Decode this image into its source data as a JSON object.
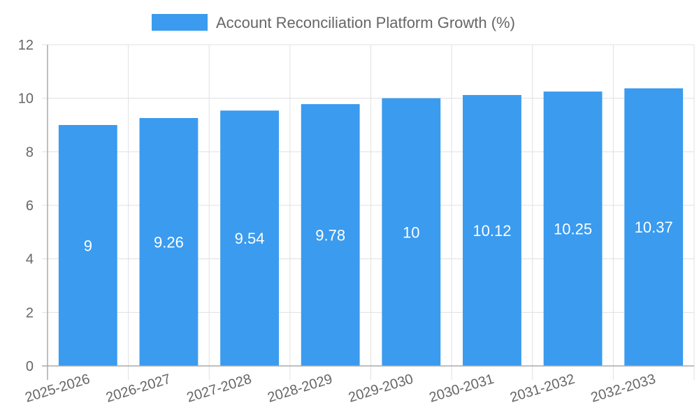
{
  "chart_data": {
    "type": "bar",
    "title": "",
    "xlabel": "",
    "ylabel": "",
    "categories": [
      "2025-2026",
      "2026-2027",
      "2027-2028",
      "2028-2029",
      "2029-2030",
      "2030-2031",
      "2031-2032",
      "2032-2033"
    ],
    "series": [
      {
        "name": "Account Reconciliation Platform Growth (%)",
        "values": [
          9,
          9.26,
          9.54,
          9.78,
          10,
          10.12,
          10.25,
          10.37
        ],
        "color": "#3a9bef"
      }
    ],
    "ylim": [
      0,
      12
    ],
    "yticks": [
      0,
      2,
      4,
      6,
      8,
      10,
      12
    ],
    "grid": true,
    "legend_position": "top",
    "data_labels": true
  },
  "legend": {
    "label": "Account Reconciliation Platform Growth (%)"
  },
  "colors": {
    "bar": "#3a9bef",
    "grid": "#e0e0e0",
    "axis": "#aaaaaa",
    "text": "#666666"
  }
}
